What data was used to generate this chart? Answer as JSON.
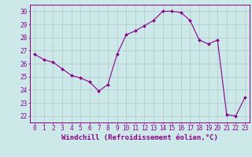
{
  "x": [
    0,
    1,
    2,
    3,
    4,
    5,
    6,
    7,
    8,
    9,
    10,
    11,
    12,
    13,
    14,
    15,
    16,
    17,
    18,
    19,
    20,
    21,
    22,
    23
  ],
  "y": [
    26.7,
    26.3,
    26.1,
    25.6,
    25.1,
    24.9,
    24.6,
    23.9,
    24.4,
    26.7,
    28.2,
    28.5,
    28.9,
    29.3,
    30.0,
    30.0,
    29.9,
    29.3,
    27.8,
    27.5,
    27.8,
    22.1,
    22.0,
    23.4
  ],
  "line_color": "#8B008B",
  "marker": "D",
  "marker_size": 2.0,
  "bg_color": "#cce8e8",
  "grid_color": "#b0c8c8",
  "xlabel": "Windchill (Refroidissement éolien,°C)",
  "xlabel_color": "#8B008B",
  "tick_color": "#8B008B",
  "ylabel_ticks": [
    22,
    23,
    24,
    25,
    26,
    27,
    28,
    29,
    30
  ],
  "xtick_labels": [
    "0",
    "1",
    "2",
    "3",
    "4",
    "5",
    "6",
    "7",
    "8",
    "9",
    "10",
    "11",
    "12",
    "13",
    "14",
    "15",
    "16",
    "17",
    "18",
    "19",
    "20",
    "21",
    "22",
    "23"
  ],
  "ylim": [
    21.5,
    30.5
  ],
  "xlim": [
    -0.5,
    23.5
  ],
  "axis_fontsize": 5.5,
  "label_fontsize": 6.5
}
